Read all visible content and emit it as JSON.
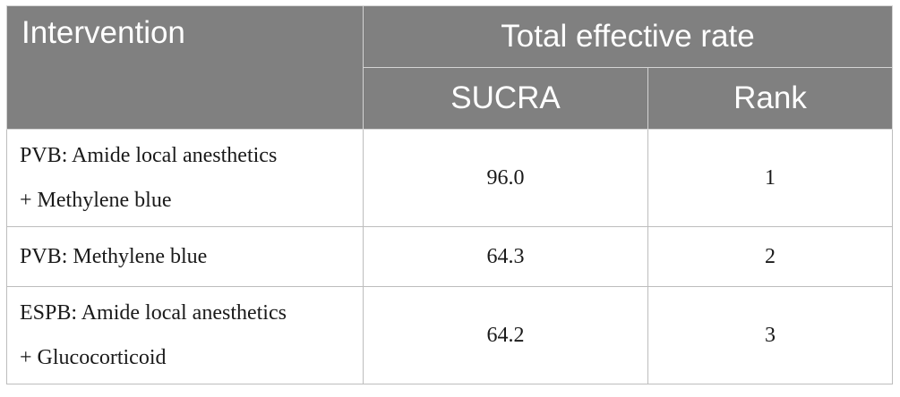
{
  "table": {
    "headers": {
      "intervention": "Intervention",
      "group": "Total effective rate",
      "sucra": "SUCRA",
      "rank": "Rank"
    },
    "rows": [
      {
        "intervention_lines": [
          "PVB: Amide local anesthetics",
          "+ Methylene blue"
        ],
        "sucra": "96.0",
        "rank": "1"
      },
      {
        "intervention_lines": [
          "PVB: Methylene blue"
        ],
        "sucra": "64.3",
        "rank": "2"
      },
      {
        "intervention_lines": [
          "ESPB: Amide local anesthetics",
          "+ Glucocorticoid"
        ],
        "sucra": "64.2",
        "rank": "3"
      }
    ]
  },
  "colors": {
    "header_background": "#808080",
    "header_text": "#ffffff",
    "body_text": "#1a1a1a",
    "border": "#bdbdbd"
  }
}
